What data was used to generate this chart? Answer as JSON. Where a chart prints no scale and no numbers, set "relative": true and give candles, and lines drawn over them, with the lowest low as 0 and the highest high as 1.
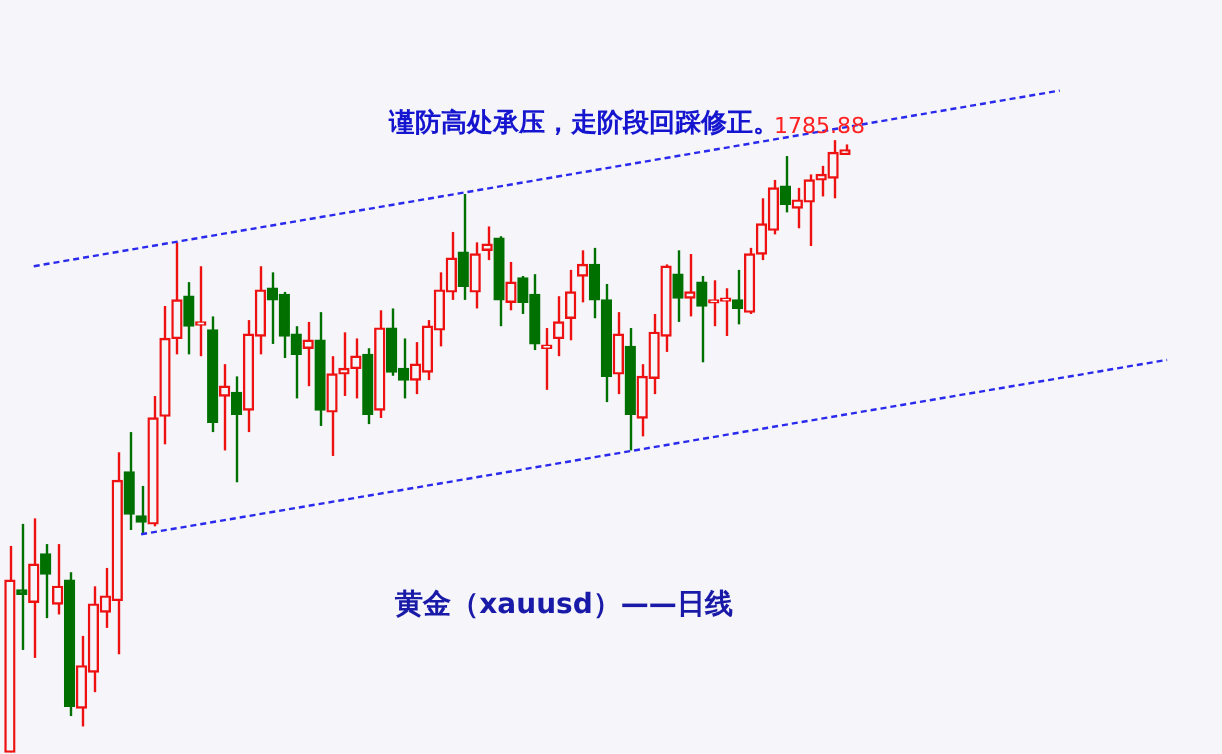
{
  "chart_data": {
    "type": "candlestick",
    "title": "谨防高处承压，走阶段回踩修正。",
    "relative": true,
    "categories": [
      null,
      null,
      null,
      null,
      null,
      null,
      null,
      null,
      null,
      null,
      null,
      null,
      null,
      null,
      null,
      null,
      null,
      null,
      null,
      null,
      null,
      null,
      null,
      null,
      null,
      null,
      null,
      null,
      null,
      null,
      null,
      null,
      null,
      null,
      null,
      null,
      null,
      null,
      null,
      null,
      null,
      null,
      null,
      null,
      null,
      null,
      null,
      null,
      null,
      null,
      null,
      null,
      null,
      null,
      null,
      null,
      null,
      null,
      null,
      null,
      null,
      null,
      null,
      null,
      null,
      null,
      null,
      null,
      null,
      null,
      null,
      null,
      null,
      null,
      null,
      null,
      null,
      null,
      null,
      null,
      null,
      null,
      null,
      null,
      null,
      null,
      null,
      null,
      null,
      null,
      null,
      null,
      null,
      null,
      null,
      null,
      null,
      null
    ],
    "ohlc": [
      [
        0,
        0.337,
        0,
        0.281
      ],
      [
        0.265,
        0.373,
        0.167,
        0.258
      ],
      [
        0.245,
        0.382,
        0.154,
        0.307
      ],
      [
        0.324,
        0.34,
        0.219,
        0.291
      ],
      [
        0.242,
        0.34,
        0.225,
        0.271
      ],
      [
        0.281,
        0.294,
        0.059,
        0.075
      ],
      [
        0.072,
        0.19,
        0.042,
        0.141
      ],
      [
        0.131,
        0.271,
        0.098,
        0.242
      ],
      [
        0.229,
        0.301,
        0.203,
        0.255
      ],
      [
        0.248,
        0.49,
        0.16,
        0.444
      ],
      [
        0.458,
        0.523,
        0.363,
        0.389
      ],
      [
        0.386,
        0.435,
        0.356,
        0.376
      ],
      [
        0.373,
        0.582,
        0.369,
        0.546
      ],
      [
        0.549,
        0.729,
        0.503,
        0.676
      ],
      [
        0.676,
        0.833,
        0.65,
        0.739
      ],
      [
        0.745,
        0.768,
        0.65,
        0.696
      ],
      [
        0.698,
        0.794,
        0.647,
        0.699
      ],
      [
        0.69,
        0.712,
        0.523,
        0.539
      ],
      [
        0.582,
        0.634,
        0.493,
        0.598
      ],
      [
        0.588,
        0.614,
        0.441,
        0.552
      ],
      [
        0.559,
        0.706,
        0.523,
        0.683
      ],
      [
        0.68,
        0.794,
        0.65,
        0.755
      ],
      [
        0.758,
        0.784,
        0.667,
        0.739
      ],
      [
        0.748,
        0.752,
        0.644,
        0.68
      ],
      [
        0.683,
        0.696,
        0.578,
        0.65
      ],
      [
        0.66,
        0.703,
        0.598,
        0.673
      ],
      [
        0.673,
        0.719,
        0.533,
        0.559
      ],
      [
        0.556,
        0.647,
        0.484,
        0.618
      ],
      [
        0.618,
        0.686,
        0.582,
        0.627
      ],
      [
        0.627,
        0.676,
        0.578,
        0.647
      ],
      [
        0.65,
        0.66,
        0.536,
        0.552
      ],
      [
        0.559,
        0.722,
        0.546,
        0.693
      ],
      [
        0.693,
        0.725,
        0.615,
        0.621
      ],
      [
        0.627,
        0.676,
        0.578,
        0.608
      ],
      [
        0.608,
        0.67,
        0.585,
        0.634
      ],
      [
        0.621,
        0.706,
        0.608,
        0.696
      ],
      [
        0.69,
        0.784,
        0.663,
        0.755
      ],
      [
        0.752,
        0.85,
        0.739,
        0.807
      ],
      [
        0.817,
        0.912,
        0.739,
        0.761
      ],
      [
        0.752,
        0.833,
        0.725,
        0.814
      ],
      [
        0.82,
        0.859,
        0.804,
        0.83
      ],
      [
        0.84,
        0.843,
        0.696,
        0.739
      ],
      [
        0.735,
        0.801,
        0.722,
        0.768
      ],
      [
        0.775,
        0.778,
        0.716,
        0.735
      ],
      [
        0.748,
        0.781,
        0.657,
        0.667
      ],
      [
        0.66,
        0.693,
        0.592,
        0.663
      ],
      [
        0.676,
        0.745,
        0.647,
        0.703
      ],
      [
        0.709,
        0.788,
        0.673,
        0.752
      ],
      [
        0.778,
        0.82,
        0.735,
        0.797
      ],
      [
        0.797,
        0.824,
        0.709,
        0.739
      ],
      [
        0.739,
        0.765,
        0.572,
        0.614
      ],
      [
        0.618,
        0.719,
        0.585,
        0.683
      ],
      [
        0.663,
        0.693,
        0.493,
        0.552
      ],
      [
        0.546,
        0.634,
        0.516,
        0.614
      ],
      [
        0.611,
        0.716,
        0.585,
        0.686
      ],
      [
        0.68,
        0.797,
        0.654,
        0.794
      ],
      [
        0.781,
        0.82,
        0.703,
        0.742
      ],
      [
        0.742,
        0.814,
        0.712,
        0.752
      ],
      [
        0.768,
        0.778,
        0.637,
        0.729
      ],
      [
        0.734,
        0.771,
        0.696,
        0.735
      ],
      [
        0.737,
        0.758,
        0.68,
        0.739
      ],
      [
        0.739,
        0.788,
        0.699,
        0.725
      ],
      [
        0.719,
        0.824,
        0.716,
        0.814
      ],
      [
        0.814,
        0.905,
        0.804,
        0.863
      ],
      [
        0.853,
        0.935,
        0.846,
        0.922
      ],
      [
        0.925,
        0.974,
        0.882,
        0.895
      ],
      [
        0.889,
        0.922,
        0.856,
        0.902
      ],
      [
        0.899,
        0.944,
        0.827,
        0.935
      ],
      [
        0.935,
        0.958,
        0.908,
        0.944
      ],
      [
        0.938,
        1,
        0.905,
        0.98
      ],
      [
        0.977,
        0.993,
        0.977,
        0.984
      ],
      null,
      null,
      null,
      null,
      null,
      null,
      null,
      null,
      null,
      null,
      null,
      null,
      null,
      null,
      null,
      null,
      null,
      null,
      null,
      null,
      null,
      null,
      null,
      null,
      null,
      null,
      null
    ],
    "series": [
      {
        "type": "line",
        "color": "#2a2aee",
        "line_style": "dashed",
        "values": [
          null,
          null,
          0.794,
          null,
          null,
          null,
          null,
          null,
          null,
          null,
          null,
          null,
          null,
          null,
          null,
          null,
          null,
          null,
          null,
          null,
          null,
          null,
          null,
          null,
          null,
          null,
          null,
          null,
          null,
          null,
          null,
          null,
          null,
          null,
          null,
          null,
          null,
          null,
          null,
          null,
          null,
          null,
          null,
          null,
          null,
          null,
          null,
          null,
          null,
          null,
          null,
          null,
          null,
          null,
          null,
          null,
          null,
          null,
          null,
          null,
          null,
          null,
          null,
          null,
          null,
          null,
          null,
          null,
          null,
          null,
          null,
          null,
          null,
          null,
          null,
          null,
          null,
          null,
          null,
          null,
          null,
          null,
          null,
          null,
          null,
          null,
          null,
          null,
          1.081,
          null,
          null,
          null,
          null,
          null,
          null,
          null,
          null,
          null
        ]
      },
      {
        "type": "line",
        "color": "#2a2aee",
        "line_style": "dashed",
        "values": [
          null,
          null,
          null,
          null,
          null,
          null,
          null,
          null,
          null,
          null,
          null,
          0.356,
          null,
          null,
          null,
          null,
          null,
          null,
          null,
          null,
          null,
          null,
          null,
          null,
          null,
          null,
          null,
          null,
          null,
          null,
          null,
          null,
          null,
          null,
          null,
          null,
          null,
          null,
          null,
          null,
          null,
          null,
          null,
          null,
          null,
          null,
          null,
          null,
          null,
          null,
          null,
          null,
          null,
          null,
          null,
          null,
          null,
          null,
          null,
          null,
          null,
          null,
          null,
          null,
          null,
          null,
          null,
          null,
          null,
          null,
          null,
          null,
          null,
          null,
          null,
          null,
          null,
          null,
          null,
          null,
          null,
          null,
          null,
          null,
          null,
          null,
          null,
          null,
          null,
          null,
          null,
          null,
          null,
          null,
          null,
          null,
          null,
          0.641
        ]
      }
    ],
    "annotations": [
      {
        "text": "1785.88",
        "y": 1
      },
      "黄金（xauusd）——日线"
    ],
    "legend": false,
    "grid": false,
    "tick_labels": false
  }
}
